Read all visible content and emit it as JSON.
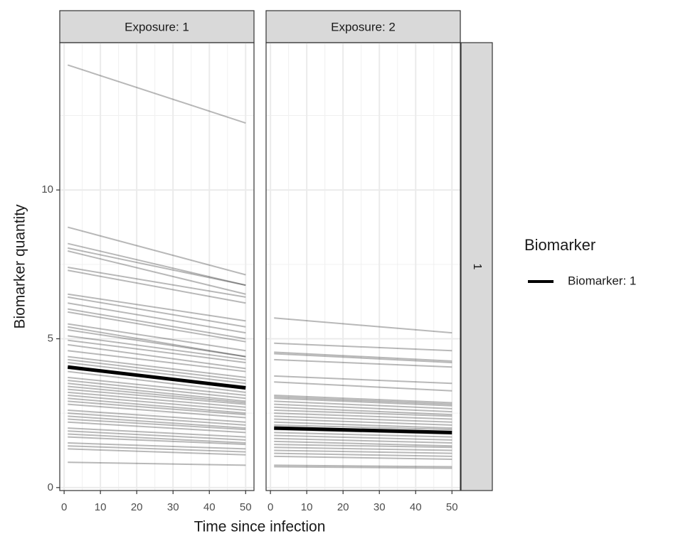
{
  "chart_data": {
    "type": "line",
    "x_label": "Time since infection",
    "y_label": "Biomarker quantity",
    "x": [
      1,
      50
    ],
    "xlim": [
      -1.2,
      52.3
    ],
    "ylim": [
      -0.1,
      14.95
    ],
    "xticks": [
      0,
      10,
      20,
      30,
      40,
      50
    ],
    "yticks": [
      0,
      5,
      10
    ],
    "x_minor_grid": [
      5,
      15,
      25,
      35,
      45
    ],
    "y_minor_grid": [
      2.5,
      7.5,
      12.5
    ],
    "grid": true,
    "row_strip": "1",
    "legend_title": "Biomarker",
    "series_name": "Biomarker: 1",
    "color": "#000000",
    "facets": [
      {
        "label": "Exposure: 1",
        "lines": [
          [
            14.2,
            12.25
          ],
          [
            8.75,
            7.15
          ],
          [
            8.2,
            6.8
          ],
          [
            8.05,
            6.8
          ],
          [
            7.95,
            6.5
          ],
          [
            7.4,
            6.4
          ],
          [
            7.3,
            6.2
          ],
          [
            6.5,
            5.6
          ],
          [
            6.4,
            5.4
          ],
          [
            6.2,
            5.2
          ],
          [
            6.0,
            5.0
          ],
          [
            5.9,
            4.9
          ],
          [
            5.5,
            4.6
          ],
          [
            5.4,
            4.4
          ],
          [
            5.3,
            4.4
          ],
          [
            5.1,
            4.3
          ],
          [
            4.95,
            4.2
          ],
          [
            4.8,
            4.0
          ],
          [
            4.6,
            3.9
          ],
          [
            4.4,
            3.7
          ],
          [
            4.3,
            3.6
          ],
          [
            4.2,
            3.5
          ],
          [
            4.0,
            3.4
          ],
          [
            3.9,
            3.2
          ],
          [
            3.7,
            3.1
          ],
          [
            3.6,
            3.0
          ],
          [
            3.5,
            2.9
          ],
          [
            3.4,
            2.85
          ],
          [
            3.3,
            2.8
          ],
          [
            3.2,
            2.7
          ],
          [
            3.1,
            2.6
          ],
          [
            3.0,
            2.5
          ],
          [
            2.9,
            2.45
          ],
          [
            2.8,
            2.35
          ],
          [
            2.6,
            2.2
          ],
          [
            2.5,
            2.1
          ],
          [
            2.4,
            2.0
          ],
          [
            2.3,
            1.95
          ],
          [
            2.2,
            1.85
          ],
          [
            2.0,
            1.7
          ],
          [
            1.9,
            1.6
          ],
          [
            1.8,
            1.5
          ],
          [
            1.7,
            1.45
          ],
          [
            1.5,
            1.3
          ],
          [
            1.4,
            1.2
          ],
          [
            1.3,
            1.1
          ],
          [
            0.85,
            0.75
          ]
        ],
        "mean": [
          4.05,
          3.35
        ]
      },
      {
        "label": "Exposure: 2",
        "lines": [
          [
            5.7,
            5.2
          ],
          [
            4.85,
            4.6
          ],
          [
            4.55,
            4.25
          ],
          [
            4.5,
            4.2
          ],
          [
            4.3,
            4.05
          ],
          [
            3.75,
            3.5
          ],
          [
            3.55,
            3.25
          ],
          [
            3.1,
            2.85
          ],
          [
            3.05,
            2.8
          ],
          [
            3.0,
            2.75
          ],
          [
            2.9,
            2.65
          ],
          [
            2.8,
            2.55
          ],
          [
            2.7,
            2.45
          ],
          [
            2.6,
            2.4
          ],
          [
            2.5,
            2.3
          ],
          [
            2.4,
            2.2
          ],
          [
            2.3,
            2.1
          ],
          [
            2.2,
            2.0
          ],
          [
            2.1,
            1.95
          ],
          [
            1.95,
            1.8
          ],
          [
            1.85,
            1.7
          ],
          [
            1.75,
            1.6
          ],
          [
            1.65,
            1.5
          ],
          [
            1.55,
            1.4
          ],
          [
            1.45,
            1.35
          ],
          [
            1.35,
            1.25
          ],
          [
            1.25,
            1.15
          ],
          [
            1.15,
            1.05
          ],
          [
            1.05,
            0.95
          ],
          [
            0.75,
            0.7
          ],
          [
            0.7,
            0.65
          ]
        ],
        "mean": [
          2.0,
          1.85
        ]
      }
    ]
  }
}
